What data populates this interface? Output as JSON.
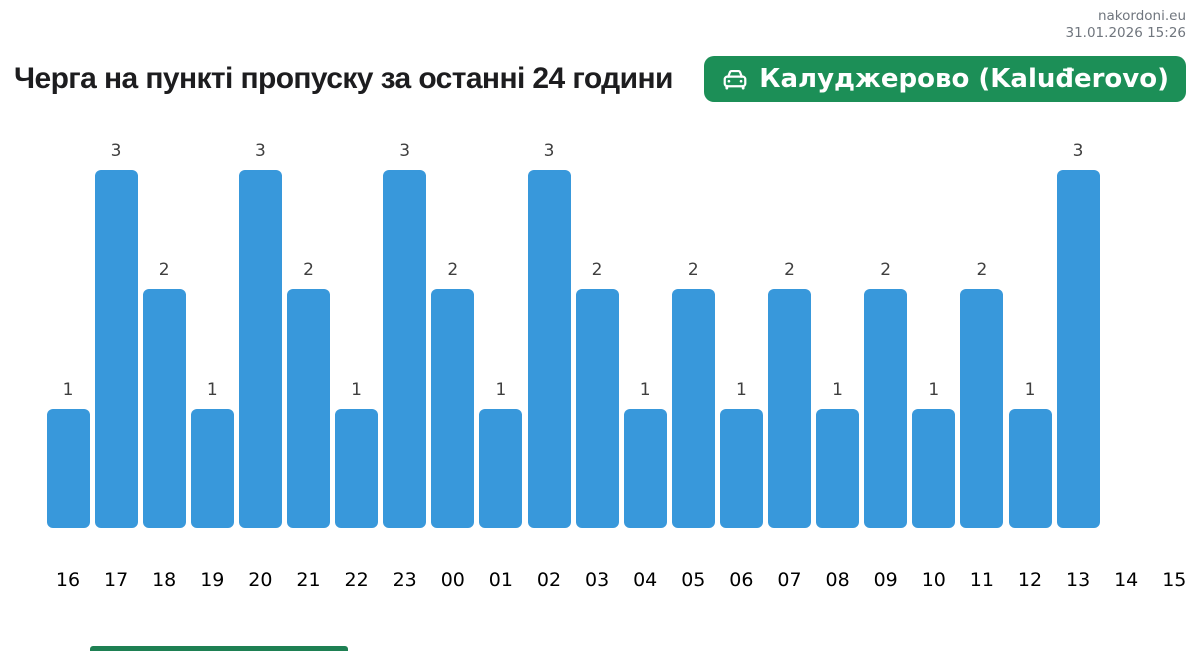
{
  "site": {
    "name": "nakordoni.eu",
    "timestamp": "31.01.2026 15:26"
  },
  "header": {
    "title": "Черга на пункті пропуску за останні 24 години",
    "checkpoint_badge": {
      "label": "Калуджерово (Kaluđerovo)",
      "icon": "car-front-icon",
      "background": "#1c8f57",
      "text_color": "#ffffff"
    }
  },
  "chart_data": {
    "type": "bar",
    "title": "Черга на пункті пропуску за останні 24 години",
    "categories": [
      "16",
      "17",
      "18",
      "19",
      "20",
      "21",
      "22",
      "23",
      "00",
      "01",
      "02",
      "03",
      "04",
      "05",
      "06",
      "07",
      "08",
      "09",
      "10",
      "11",
      "12",
      "13",
      "14",
      "15"
    ],
    "values": [
      1,
      3,
      2,
      1,
      3,
      2,
      1,
      3,
      2,
      1,
      3,
      2,
      1,
      2,
      1,
      2,
      1,
      2,
      1,
      2,
      1,
      3,
      null,
      null
    ],
    "data_labels_shown": true,
    "bar_color": "#3898db",
    "value_label_color": "#3f3f3f",
    "axis_label_color": "#000000",
    "xlabel": "",
    "ylabel": "",
    "ylim": [
      0,
      3.35
    ],
    "grid": false,
    "legend": false
  },
  "footer": {
    "partial_green_bar_color": "#1e8053"
  }
}
